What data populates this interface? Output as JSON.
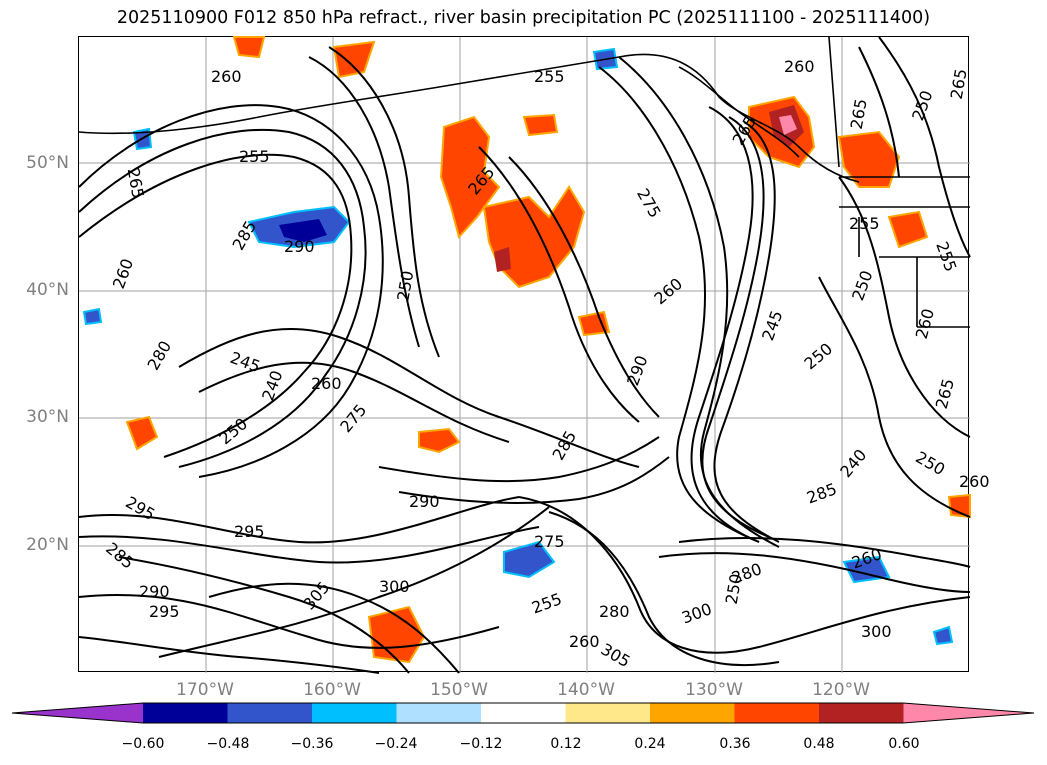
{
  "title": "2025110900 F012 850 hPa refract., river basin precipitation PC (2025111100 - 2025111400)",
  "lat_labels": [
    "50°N",
    "40°N",
    "30°N",
    "20°N"
  ],
  "lon_labels": [
    "170°W",
    "160°W",
    "150°W",
    "140°W",
    "130°W",
    "120°W"
  ],
  "colorbar": {
    "tick_labels": [
      "−0.60",
      "−0.48",
      "−0.36",
      "−0.24",
      "−0.12",
      "0.12",
      "0.24",
      "0.36",
      "0.48",
      "0.60"
    ],
    "colors": [
      "#9933cc",
      "#000099",
      "#3355cc",
      "#00bfff",
      "#b0e0ff",
      "#ffffff",
      "#ffe88a",
      "#ffa500",
      "#ff4500",
      "#b22222",
      "#ff88aa"
    ]
  },
  "contour_labels": [
    "260",
    "255",
    "265",
    "255",
    "275",
    "265",
    "285",
    "290",
    "260",
    "250",
    "280",
    "245",
    "240",
    "260",
    "275",
    "250",
    "290",
    "285",
    "290",
    "295",
    "300",
    "305",
    "300",
    "260",
    "250",
    "280",
    "265",
    "250",
    "255",
    "260",
    "245",
    "250",
    "240",
    "255",
    "265",
    "285",
    "295",
    "295",
    "305",
    "290",
    "285",
    "260",
    "255",
    "275",
    "260",
    "265",
    "250",
    "250",
    "280",
    "300",
    "260",
    "265",
    "260"
  ],
  "colors": {
    "land_outline": "#000000",
    "grid": "#a0a0a0",
    "contour": "#000000"
  }
}
